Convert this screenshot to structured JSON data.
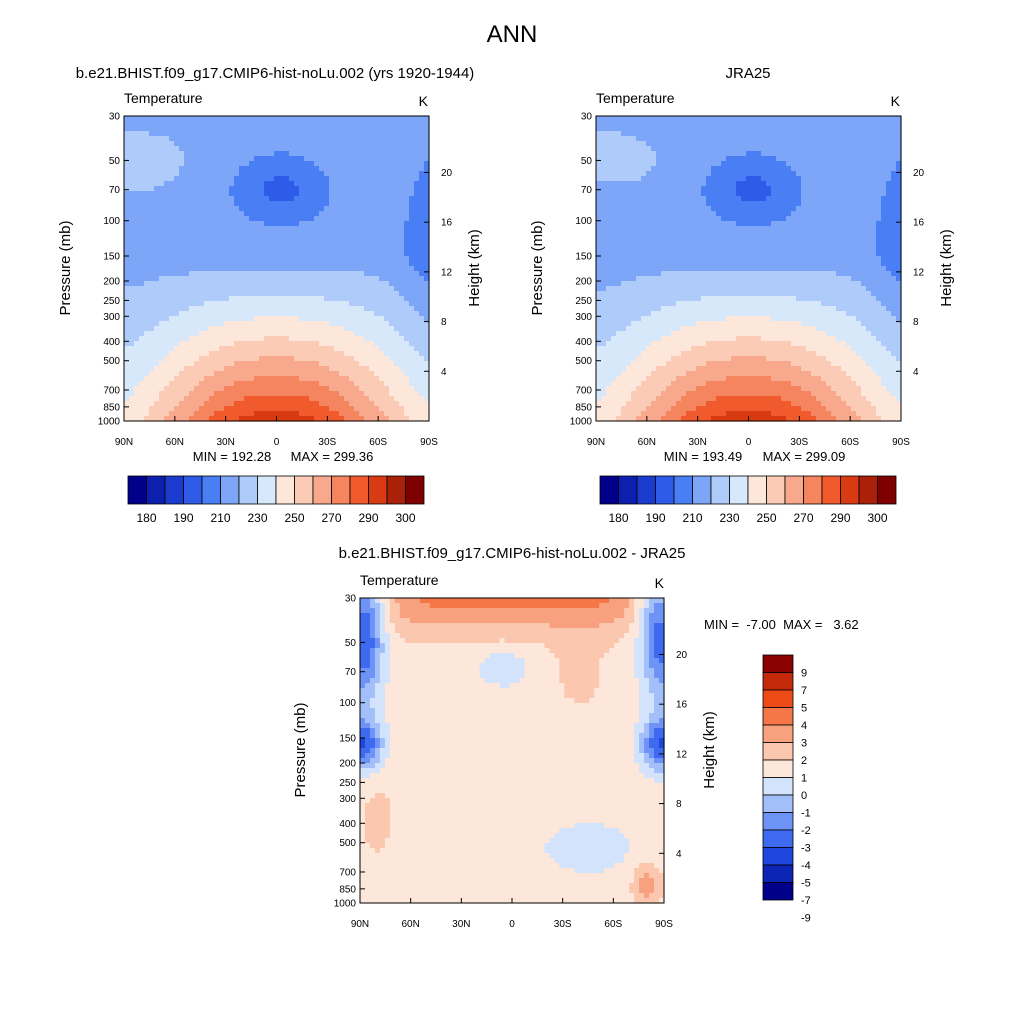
{
  "page": {
    "title": "ANN"
  },
  "colors": {
    "levels10": [
      "#00008B",
      "#0D1FAF",
      "#1A3CCE",
      "#2E5CE8",
      "#4A7EF5",
      "#7DA5F8",
      "#AECBFA",
      "#D8E8FB",
      "#FDE6DA",
      "#FBCBB5",
      "#F8A98D",
      "#F5855F",
      "#F15A2C",
      "#D83A11",
      "#AB2009",
      "#7F0000"
    ],
    "diff": [
      "#00008B",
      "#0C25B5",
      "#1E46DE",
      "#3E6AF0",
      "#6E93F6",
      "#A3BFF9",
      "#D3E3FB",
      "#FDE7DA",
      "#FBC7AE",
      "#F8A17F",
      "#F57646",
      "#EE4A17",
      "#C42A0A",
      "#8B0000"
    ]
  },
  "chart_data": [
    {
      "type": "heatmap",
      "variable": "Temperature",
      "units": "K",
      "title": "b.e21.BHIST.f09_g17.CMIP6-hist-noLu.002 (yrs 1920-1944)",
      "xticks": [
        "90N",
        "60N",
        "30N",
        "0",
        "30S",
        "60S",
        "90S"
      ],
      "yticks": [
        "30",
        "50",
        "70",
        "100",
        "150",
        "200",
        "250",
        "300",
        "400",
        "500",
        "700",
        "850",
        "1000"
      ],
      "ylabel": "Pressure (mb)",
      "y2label": "Height (km)",
      "y2ticks": [
        "20",
        "16",
        "12",
        "8",
        "4"
      ],
      "min_label": "MIN = 192.28",
      "max_label": "MAX = 299.36",
      "colorbar_labels": [
        "180",
        "190",
        "210",
        "230",
        "250",
        "270",
        "290",
        "300"
      ],
      "value_range": [
        192.28,
        299.36
      ]
    },
    {
      "type": "heatmap",
      "variable": "Temperature",
      "units": "K",
      "title": "JRA25",
      "xticks": [
        "90N",
        "60N",
        "30N",
        "0",
        "30S",
        "60S",
        "90S"
      ],
      "yticks": [
        "30",
        "50",
        "70",
        "100",
        "150",
        "200",
        "250",
        "300",
        "400",
        "500",
        "700",
        "850",
        "1000"
      ],
      "ylabel": "Pressure (mb)",
      "y2label": "Height (km)",
      "y2ticks": [
        "20",
        "16",
        "12",
        "8",
        "4"
      ],
      "min_label": "MIN = 193.49",
      "max_label": "MAX = 299.09",
      "colorbar_labels": [
        "180",
        "190",
        "210",
        "230",
        "250",
        "270",
        "290",
        "300"
      ],
      "value_range": [
        193.49,
        299.09
      ]
    },
    {
      "type": "heatmap",
      "variable": "Temperature",
      "units": "K",
      "title": "b.e21.BHIST.f09_g17.CMIP6-hist-noLu.002 - JRA25",
      "xticks": [
        "90N",
        "60N",
        "30N",
        "0",
        "30S",
        "60S",
        "90S"
      ],
      "yticks": [
        "30",
        "50",
        "70",
        "100",
        "150",
        "200",
        "250",
        "300",
        "400",
        "500",
        "700",
        "850",
        "1000"
      ],
      "ylabel": "Pressure (mb)",
      "y2label": "Height (km)",
      "y2ticks": [
        "20",
        "16",
        "12",
        "8",
        "4"
      ],
      "minmax_label": "MIN =  -7.00  MAX =   3.62",
      "colorbar_labels": [
        "9",
        "7",
        "5",
        "4",
        "3",
        "2",
        "1",
        "0",
        "-1",
        "-2",
        "-3",
        "-4",
        "-5",
        "-7",
        "-9"
      ],
      "value_range": [
        -7.0,
        3.62
      ]
    }
  ]
}
